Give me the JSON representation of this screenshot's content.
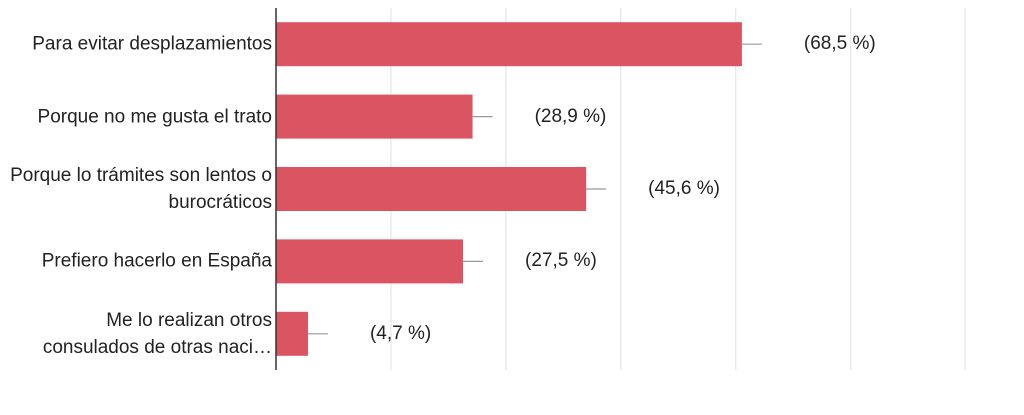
{
  "chart_data": {
    "type": "bar",
    "orientation": "horizontal",
    "categories": [
      "Para evitar desplazamientos",
      "Porque no me gusta el trato",
      "Porque lo trámites son lentos o burocráticos",
      "Prefiero hacerlo en España",
      "Me lo realizan otros consulados de otras naci…"
    ],
    "values": [
      68.5,
      28.9,
      45.6,
      27.5,
      4.7
    ],
    "value_labels": [
      "(68,5 %)",
      "(28,9 %)",
      "(45,6 %)",
      "(27,5 %)",
      "(4,7 %)"
    ],
    "color": "#db5461",
    "xlim": [
      0,
      101.3
    ],
    "xticks": [
      0,
      16.9,
      33.8,
      50.7,
      67.6,
      84.5,
      101.3
    ],
    "grid": true
  }
}
